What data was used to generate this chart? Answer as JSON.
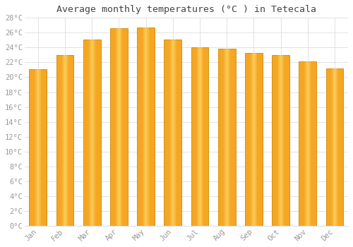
{
  "months": [
    "Jan",
    "Feb",
    "Mar",
    "Apr",
    "May",
    "Jun",
    "Jul",
    "Aug",
    "Sep",
    "Oct",
    "Nov",
    "Dec"
  ],
  "values": [
    21.1,
    23.0,
    25.1,
    26.6,
    26.7,
    25.1,
    24.0,
    23.8,
    23.3,
    23.0,
    22.1,
    21.2
  ],
  "bar_color_left": "#F5A623",
  "bar_color_center": "#FFD966",
  "bar_color_right": "#F5A623",
  "bar_edge_color": "#CC8800",
  "title": "Average monthly temperatures (°C ) in Tetecala",
  "ylim": [
    0,
    28
  ],
  "ytick_step": 2,
  "background_color": "#ffffff",
  "grid_color": "#dddddd",
  "title_fontsize": 9.5,
  "tick_fontsize": 7.5,
  "tick_color": "#999999",
  "title_color": "#444444",
  "bar_width": 0.65
}
